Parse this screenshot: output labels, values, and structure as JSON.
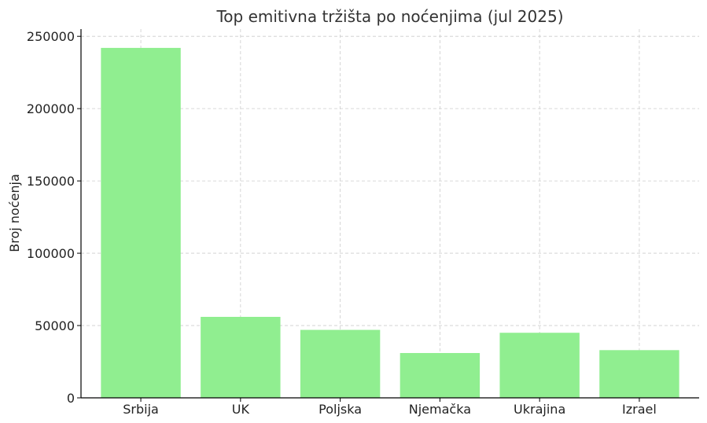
{
  "chart_data": {
    "type": "bar",
    "title": "Top emitivna tržišta po noćenjima (jul 2025)",
    "xlabel": "",
    "ylabel": "Broj noćenja",
    "categories": [
      "Srbija",
      "UK",
      "Poljska",
      "Njemačka",
      "Ukrajina",
      "Izrael"
    ],
    "values": [
      242000,
      56000,
      47000,
      31000,
      45000,
      33000
    ],
    "ylim": [
      0,
      255000
    ],
    "yticks": [
      0,
      50000,
      100000,
      150000,
      200000,
      250000
    ],
    "ytick_labels": [
      "0",
      "50000",
      "100000",
      "150000",
      "200000",
      "250000"
    ],
    "bar_color": "#90ee90",
    "grid": true
  }
}
